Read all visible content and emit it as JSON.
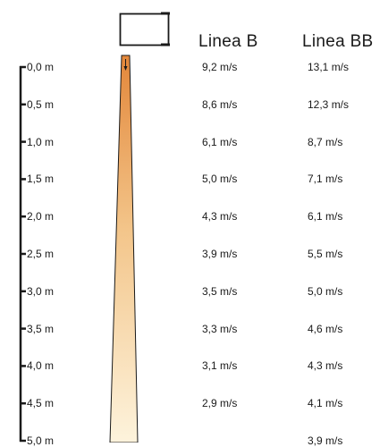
{
  "columns": {
    "a": "Linea B",
    "b": "Linea BB"
  },
  "scale": [
    "0,0 m",
    "0,5 m",
    "1,0 m",
    "1,5 m",
    "2,0 m",
    "2,5 m",
    "3,0 m",
    "3,5 m",
    "4,0 m",
    "4,5 m",
    "5,0 m"
  ],
  "line_b": [
    "9,2 m/s",
    "8,6 m/s",
    "6,1 m/s",
    "5,0 m/s",
    "4,3 m/s",
    "3,9 m/s",
    "3,5 m/s",
    "3,3 m/s",
    "3,1 m/s",
    "2,9 m/s",
    ""
  ],
  "line_bb": [
    "13,1 m/s",
    "12,3 m/s",
    "8,7 m/s",
    "7,1 m/s",
    "6,1 m/s",
    "5,5 m/s",
    "5,0 m/s",
    "4,6 m/s",
    "4,3 m/s",
    "4,1 m/s",
    "3,9 m/s"
  ],
  "colors": {
    "beam_top": "#e3873a",
    "beam_bottom": "#fdf3dc",
    "line": "#1a1a1a"
  }
}
